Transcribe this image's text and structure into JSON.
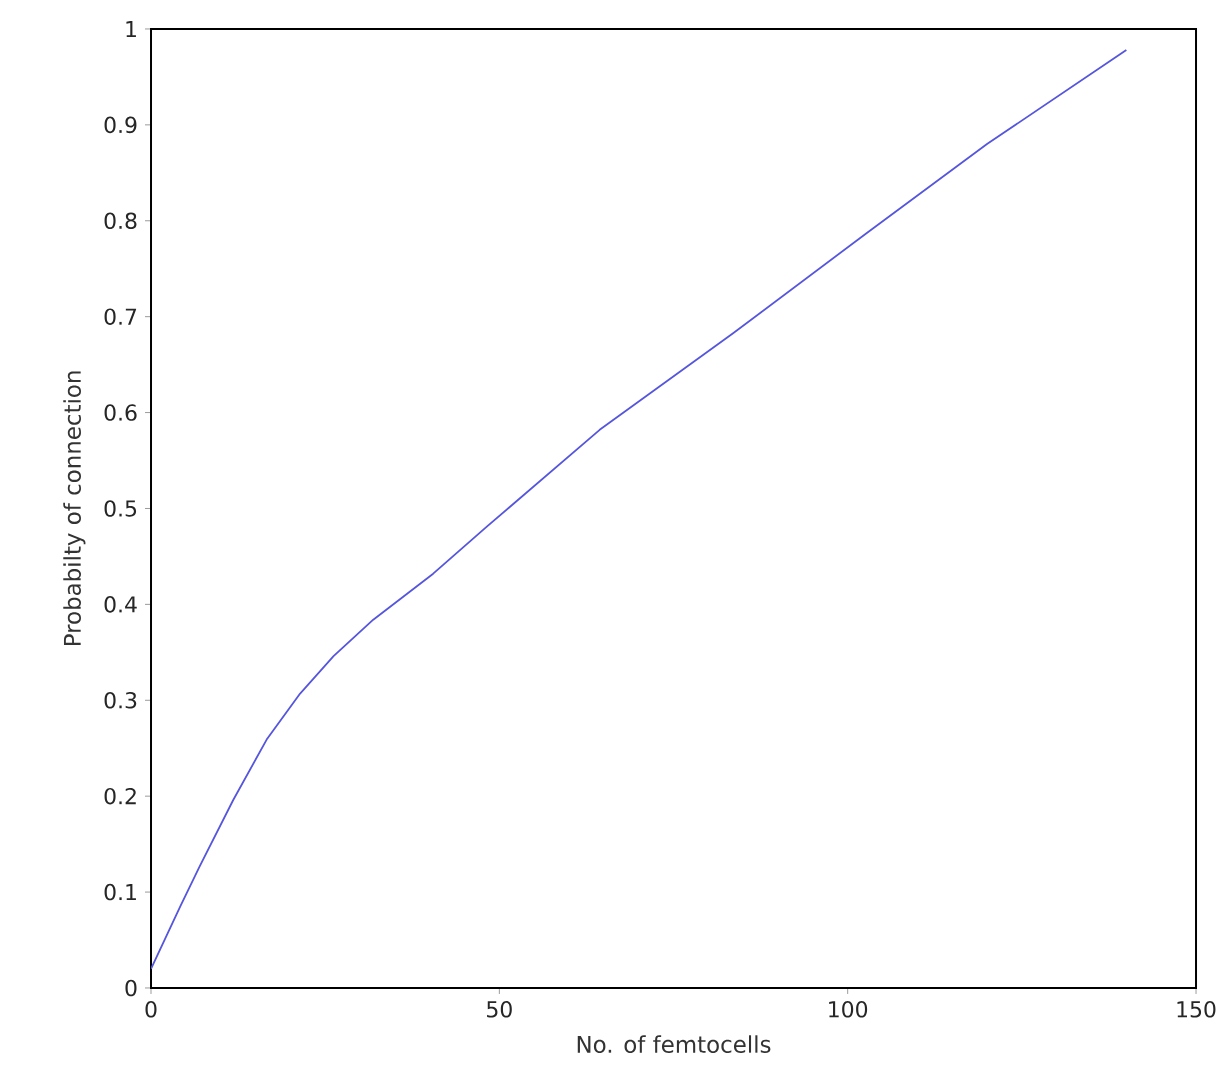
{
  "chart_data": {
    "type": "line",
    "xlabel": "No. of femtocells",
    "ylabel": "Probabilty of connection",
    "xlim": [
      0,
      150
    ],
    "ylim": [
      0,
      1
    ],
    "xticks": [
      0,
      50,
      100,
      150
    ],
    "yticks": [
      0,
      0.1,
      0.2,
      0.3,
      0.4,
      0.5,
      0.6,
      0.7,
      0.8,
      0.9,
      1
    ],
    "marker": "none",
    "line_style": "solid",
    "series": [
      {
        "color": "#5555dd",
        "x": [
          0,
          4.2,
          7.0,
          11.8,
          16.6,
          21.4,
          26.2,
          31.9,
          40.5,
          48.2,
          64.4,
          83.6,
          102.7,
          120,
          140
        ],
        "values": [
          0.02,
          0.085,
          0.127,
          0.196,
          0.259,
          0.307,
          0.346,
          0.384,
          0.432,
          0.481,
          0.582,
          0.683,
          0.787,
          0.88,
          0.978
        ]
      }
    ]
  }
}
